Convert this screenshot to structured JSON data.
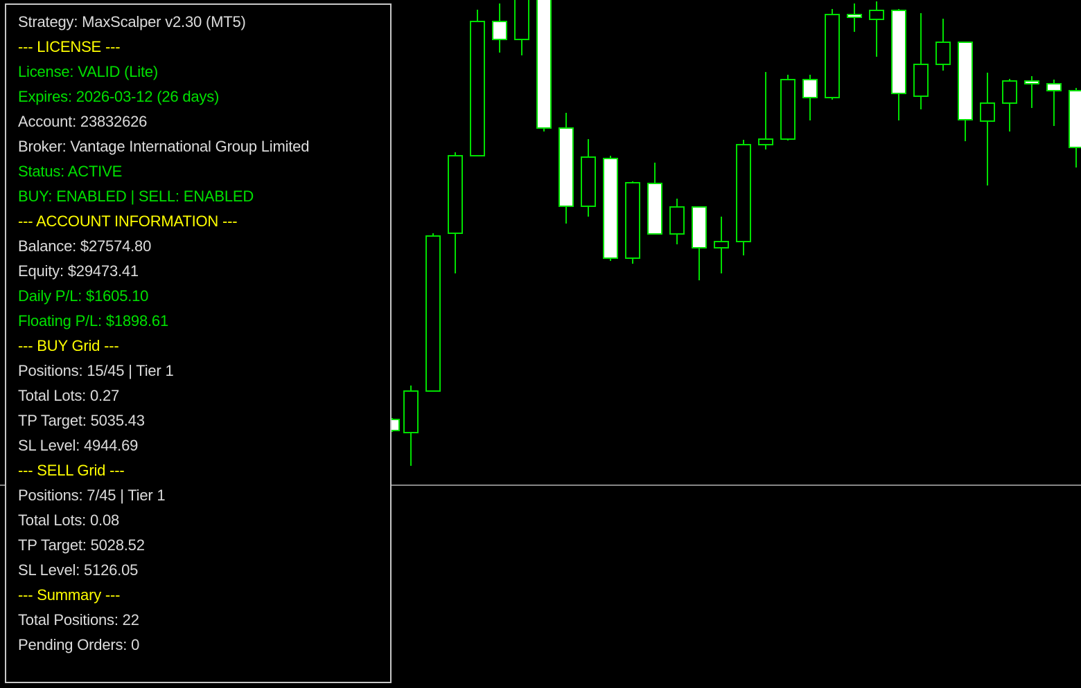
{
  "colors": {
    "background": "#000000",
    "text_default": "#dcdcdc",
    "text_header": "#ffff00",
    "text_ok": "#00e000",
    "candle_outline": "#00e000",
    "candle_bear_fill": "#ffffff",
    "panel_border": "#c8c8c8",
    "hline": "#b4b4b4"
  },
  "info_panel": {
    "lines": [
      {
        "text": "Strategy: MaxScalper v2.30 (MT5)",
        "color": "white"
      },
      {
        "text": "--- LICENSE ---",
        "color": "yellow"
      },
      {
        "text": "License: VALID (Lite)",
        "color": "green"
      },
      {
        "text": "Expires: 2026-03-12 (26 days)",
        "color": "green"
      },
      {
        "text": "Account: 23832626",
        "color": "white"
      },
      {
        "text": "Broker: Vantage International Group Limited",
        "color": "white"
      },
      {
        "text": "Status: ACTIVE",
        "color": "green"
      },
      {
        "text": "BUY: ENABLED | SELL: ENABLED",
        "color": "green"
      },
      {
        "text": "--- ACCOUNT INFORMATION ---",
        "color": "yellow"
      },
      {
        "text": "Balance: $27574.80",
        "color": "white"
      },
      {
        "text": "Equity: $29473.41",
        "color": "white"
      },
      {
        "text": "Daily P/L: $1605.10",
        "color": "green"
      },
      {
        "text": "Floating P/L: $1898.61",
        "color": "green"
      },
      {
        "text": "--- BUY Grid ---",
        "color": "yellow"
      },
      {
        "text": "Positions: 15/45 | Tier 1",
        "color": "white"
      },
      {
        "text": "Total Lots: 0.27",
        "color": "white"
      },
      {
        "text": "TP Target: 5035.43",
        "color": "white"
      },
      {
        "text": "SL Level: 4944.69",
        "color": "white"
      },
      {
        "text": "--- SELL Grid ---",
        "color": "yellow"
      },
      {
        "text": "Positions: 7/45 | Tier 1",
        "color": "white"
      },
      {
        "text": "Total Lots: 0.08",
        "color": "white"
      },
      {
        "text": "TP Target: 5028.52",
        "color": "white"
      },
      {
        "text": "SL Level: 5126.05",
        "color": "white"
      },
      {
        "text": "--- Summary ---",
        "color": "yellow"
      },
      {
        "text": "Total Positions: 22",
        "color": "white"
      },
      {
        "text": "Pending Orders: 0",
        "color": "white"
      }
    ]
  }
}
